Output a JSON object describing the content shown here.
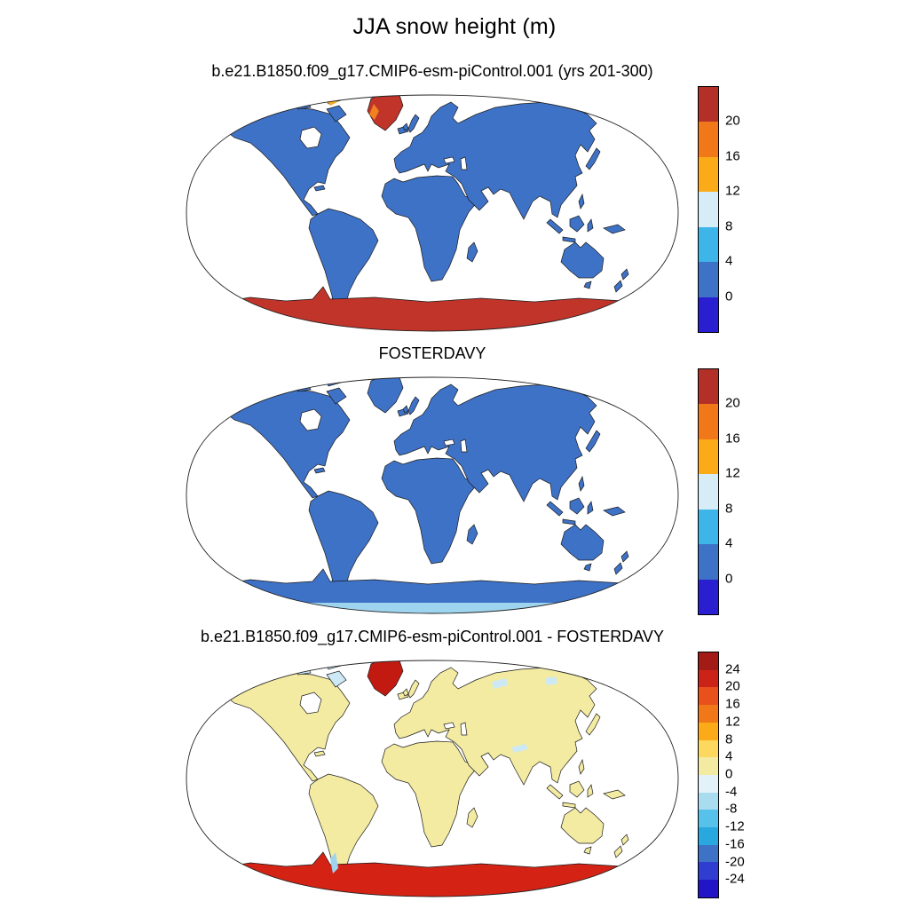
{
  "figure": {
    "title": "JJA snow height (m)",
    "background": "#ffffff"
  },
  "panels": [
    {
      "title": "b.e21.B1850.f09_g17.CMIP6-esm-piControl.001 (yrs 201-300)",
      "map": {
        "ocean": "#ffffff",
        "land": "#3e72c6",
        "greenland": "#c0342a",
        "antarctica": "#c0342a",
        "arctic_islands": "#3e72c6",
        "coastline": "#1a1a1a",
        "extra_regions": [
          {
            "name": "greenland-fringe",
            "color": "#f08020"
          },
          {
            "name": "ellesmere-speck",
            "color": "#f5a623"
          }
        ]
      },
      "colorbar": {
        "colors": [
          "#b23028",
          "#f07818",
          "#fbab18",
          "#d6ecf6",
          "#3eb5e8",
          "#3e72c6",
          "#2a1fd0"
        ],
        "labels": [
          "20",
          "16",
          "12",
          "8",
          "4",
          "0"
        ]
      }
    },
    {
      "title": "FOSTERDAVY",
      "map": {
        "ocean": "#ffffff",
        "land": "#3e72c6",
        "greenland": "#3e72c6",
        "antarctica": "#3e72c6",
        "arctic_islands": "#3e72c6",
        "coastline": "#1a1a1a",
        "extra_regions": [
          {
            "name": "antarctica-coast-fringe",
            "color": "#9fd4ee"
          }
        ]
      },
      "colorbar": {
        "colors": [
          "#b23028",
          "#f07818",
          "#fbab18",
          "#d6ecf6",
          "#3eb5e8",
          "#3e72c6",
          "#2a1fd0"
        ],
        "labels": [
          "20",
          "16",
          "12",
          "8",
          "4",
          "0"
        ]
      }
    },
    {
      "title": "b.e21.B1850.f09_g17.CMIP6-esm-piControl.001 - FOSTERDAVY",
      "map": {
        "ocean": "#ffffff",
        "land": "#f3eba2",
        "greenland": "#c21a10",
        "antarctica": "#d42314",
        "arctic_islands": "#cde9f6",
        "coastline": "#1a1a1a",
        "extra_regions": [
          {
            "name": "patagonia-ice",
            "color": "#9fd4ee"
          },
          {
            "name": "himalaya-patch",
            "color": "#cde9f6"
          },
          {
            "name": "siberia-patch-1",
            "color": "#cde9f6"
          },
          {
            "name": "siberia-patch-2",
            "color": "#cde9f6"
          }
        ]
      },
      "colorbar": {
        "colors": [
          "#a21b16",
          "#cc2318",
          "#e8501c",
          "#f07818",
          "#fbab18",
          "#fcd95e",
          "#f3eba2",
          "#e2f2f8",
          "#aadcf0",
          "#56c2ec",
          "#28a8de",
          "#3e72c6",
          "#2f3ed0",
          "#2215c8"
        ],
        "labels": [
          "24",
          "20",
          "16",
          "12",
          "8",
          "4",
          "0",
          "-4",
          "-8",
          "-12",
          "-16",
          "-20",
          "-24"
        ]
      }
    }
  ],
  "chart_data": [
    {
      "type": "heatmap",
      "map_projection": "Robinson",
      "title": "b.e21.B1850.f09_g17.CMIP6-esm-piControl.001 (yrs 201-300)",
      "variable": "JJA snow height",
      "units": "m",
      "legend_position": "right",
      "colorbar_tick_labels": [
        20,
        16,
        12,
        8,
        4,
        0
      ],
      "colorbar_colors": [
        "#b23028",
        "#f07818",
        "#fbab18",
        "#d6ecf6",
        "#3eb5e8",
        "#3e72c6",
        "#2a1fd0"
      ],
      "values_by_region": {
        "most_land": "0-4",
        "antarctica": ">20",
        "greenland_interior": ">20",
        "greenland_margins": "12-20",
        "canadian_arctic_specks": "12-20",
        "ocean": "masked (white)"
      }
    },
    {
      "type": "heatmap",
      "map_projection": "Robinson",
      "title": "FOSTERDAVY",
      "variable": "JJA snow height",
      "units": "m",
      "legend_position": "right",
      "colorbar_tick_labels": [
        20,
        16,
        12,
        8,
        4,
        0
      ],
      "colorbar_colors": [
        "#b23028",
        "#f07818",
        "#fbab18",
        "#d6ecf6",
        "#3eb5e8",
        "#3e72c6",
        "#2a1fd0"
      ],
      "values_by_region": {
        "most_land": "0-4",
        "antarctica": "0-4",
        "antarctica_coastal_fringe": "4-8",
        "greenland": "0-4",
        "ocean": "masked (white)"
      }
    },
    {
      "type": "heatmap",
      "map_projection": "Robinson",
      "title": "b.e21.B1850.f09_g17.CMIP6-esm-piControl.001 - FOSTERDAVY",
      "variable": "JJA snow height difference (model minus FOSTERDAVY)",
      "units": "m",
      "legend_position": "right",
      "colorbar_tick_labels": [
        24,
        20,
        16,
        12,
        8,
        4,
        0,
        -4,
        -8,
        -12,
        -16,
        -20,
        -24
      ],
      "colorbar_colors": [
        "#a21b16",
        "#cc2318",
        "#e8501c",
        "#f07818",
        "#fbab18",
        "#fcd95e",
        "#f3eba2",
        "#e2f2f8",
        "#aadcf0",
        "#56c2ec",
        "#28a8de",
        "#3e72c6",
        "#2f3ed0",
        "#2215c8"
      ],
      "values_by_region": {
        "most_land": "0 to +4",
        "antarctica": "greater than +20",
        "greenland": "greater than +20",
        "patagonia": "-8 to -4",
        "himalayas": "-4 to 0",
        "arctic_islands": "-4 to 0",
        "siberian_patches": "-4 to 0",
        "ocean": "masked (white)"
      }
    }
  ]
}
